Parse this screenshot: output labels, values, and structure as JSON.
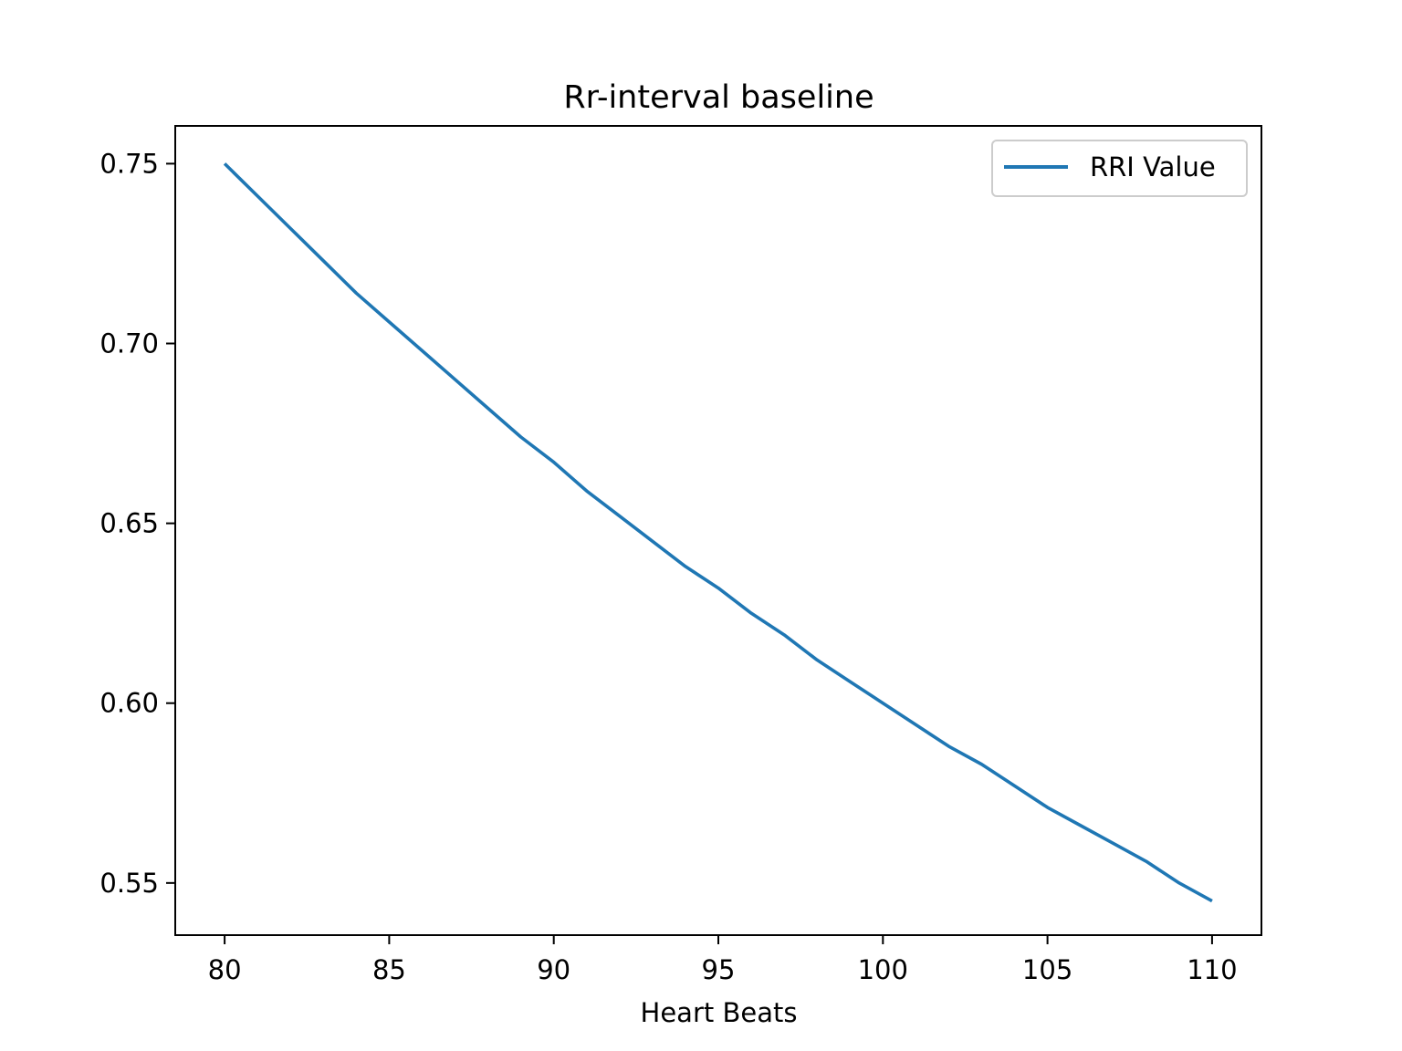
{
  "chart_data": {
    "type": "line",
    "title": "Rr-interval baseline",
    "xlabel": "Heart Beats",
    "ylabel": "",
    "xlim": [
      78.5,
      111.5
    ],
    "ylim": [
      0.5355,
      0.7605
    ],
    "xticks": [
      80,
      85,
      90,
      95,
      100,
      105,
      110
    ],
    "xtick_labels": [
      "80",
      "85",
      "90",
      "95",
      "100",
      "105",
      "110"
    ],
    "yticks": [
      0.55,
      0.6,
      0.65,
      0.7,
      0.75
    ],
    "ytick_labels": [
      "0.55",
      "0.60",
      "0.65",
      "0.70",
      "0.75"
    ],
    "grid": false,
    "legend_position": "top-right",
    "series": [
      {
        "name": "RRI Value",
        "color": "#1f77b4",
        "x": [
          80,
          81,
          82,
          83,
          84,
          85,
          86,
          87,
          88,
          89,
          90,
          91,
          92,
          93,
          94,
          95,
          96,
          97,
          98,
          99,
          100,
          101,
          102,
          103,
          104,
          105,
          106,
          107,
          108,
          109,
          110
        ],
        "y": [
          0.75,
          0.741,
          0.732,
          0.723,
          0.714,
          0.706,
          0.698,
          0.69,
          0.682,
          0.674,
          0.667,
          0.659,
          0.652,
          0.645,
          0.638,
          0.632,
          0.625,
          0.619,
          0.612,
          0.606,
          0.6,
          0.594,
          0.588,
          0.583,
          0.577,
          0.571,
          0.566,
          0.561,
          0.556,
          0.55,
          0.545
        ]
      }
    ]
  }
}
